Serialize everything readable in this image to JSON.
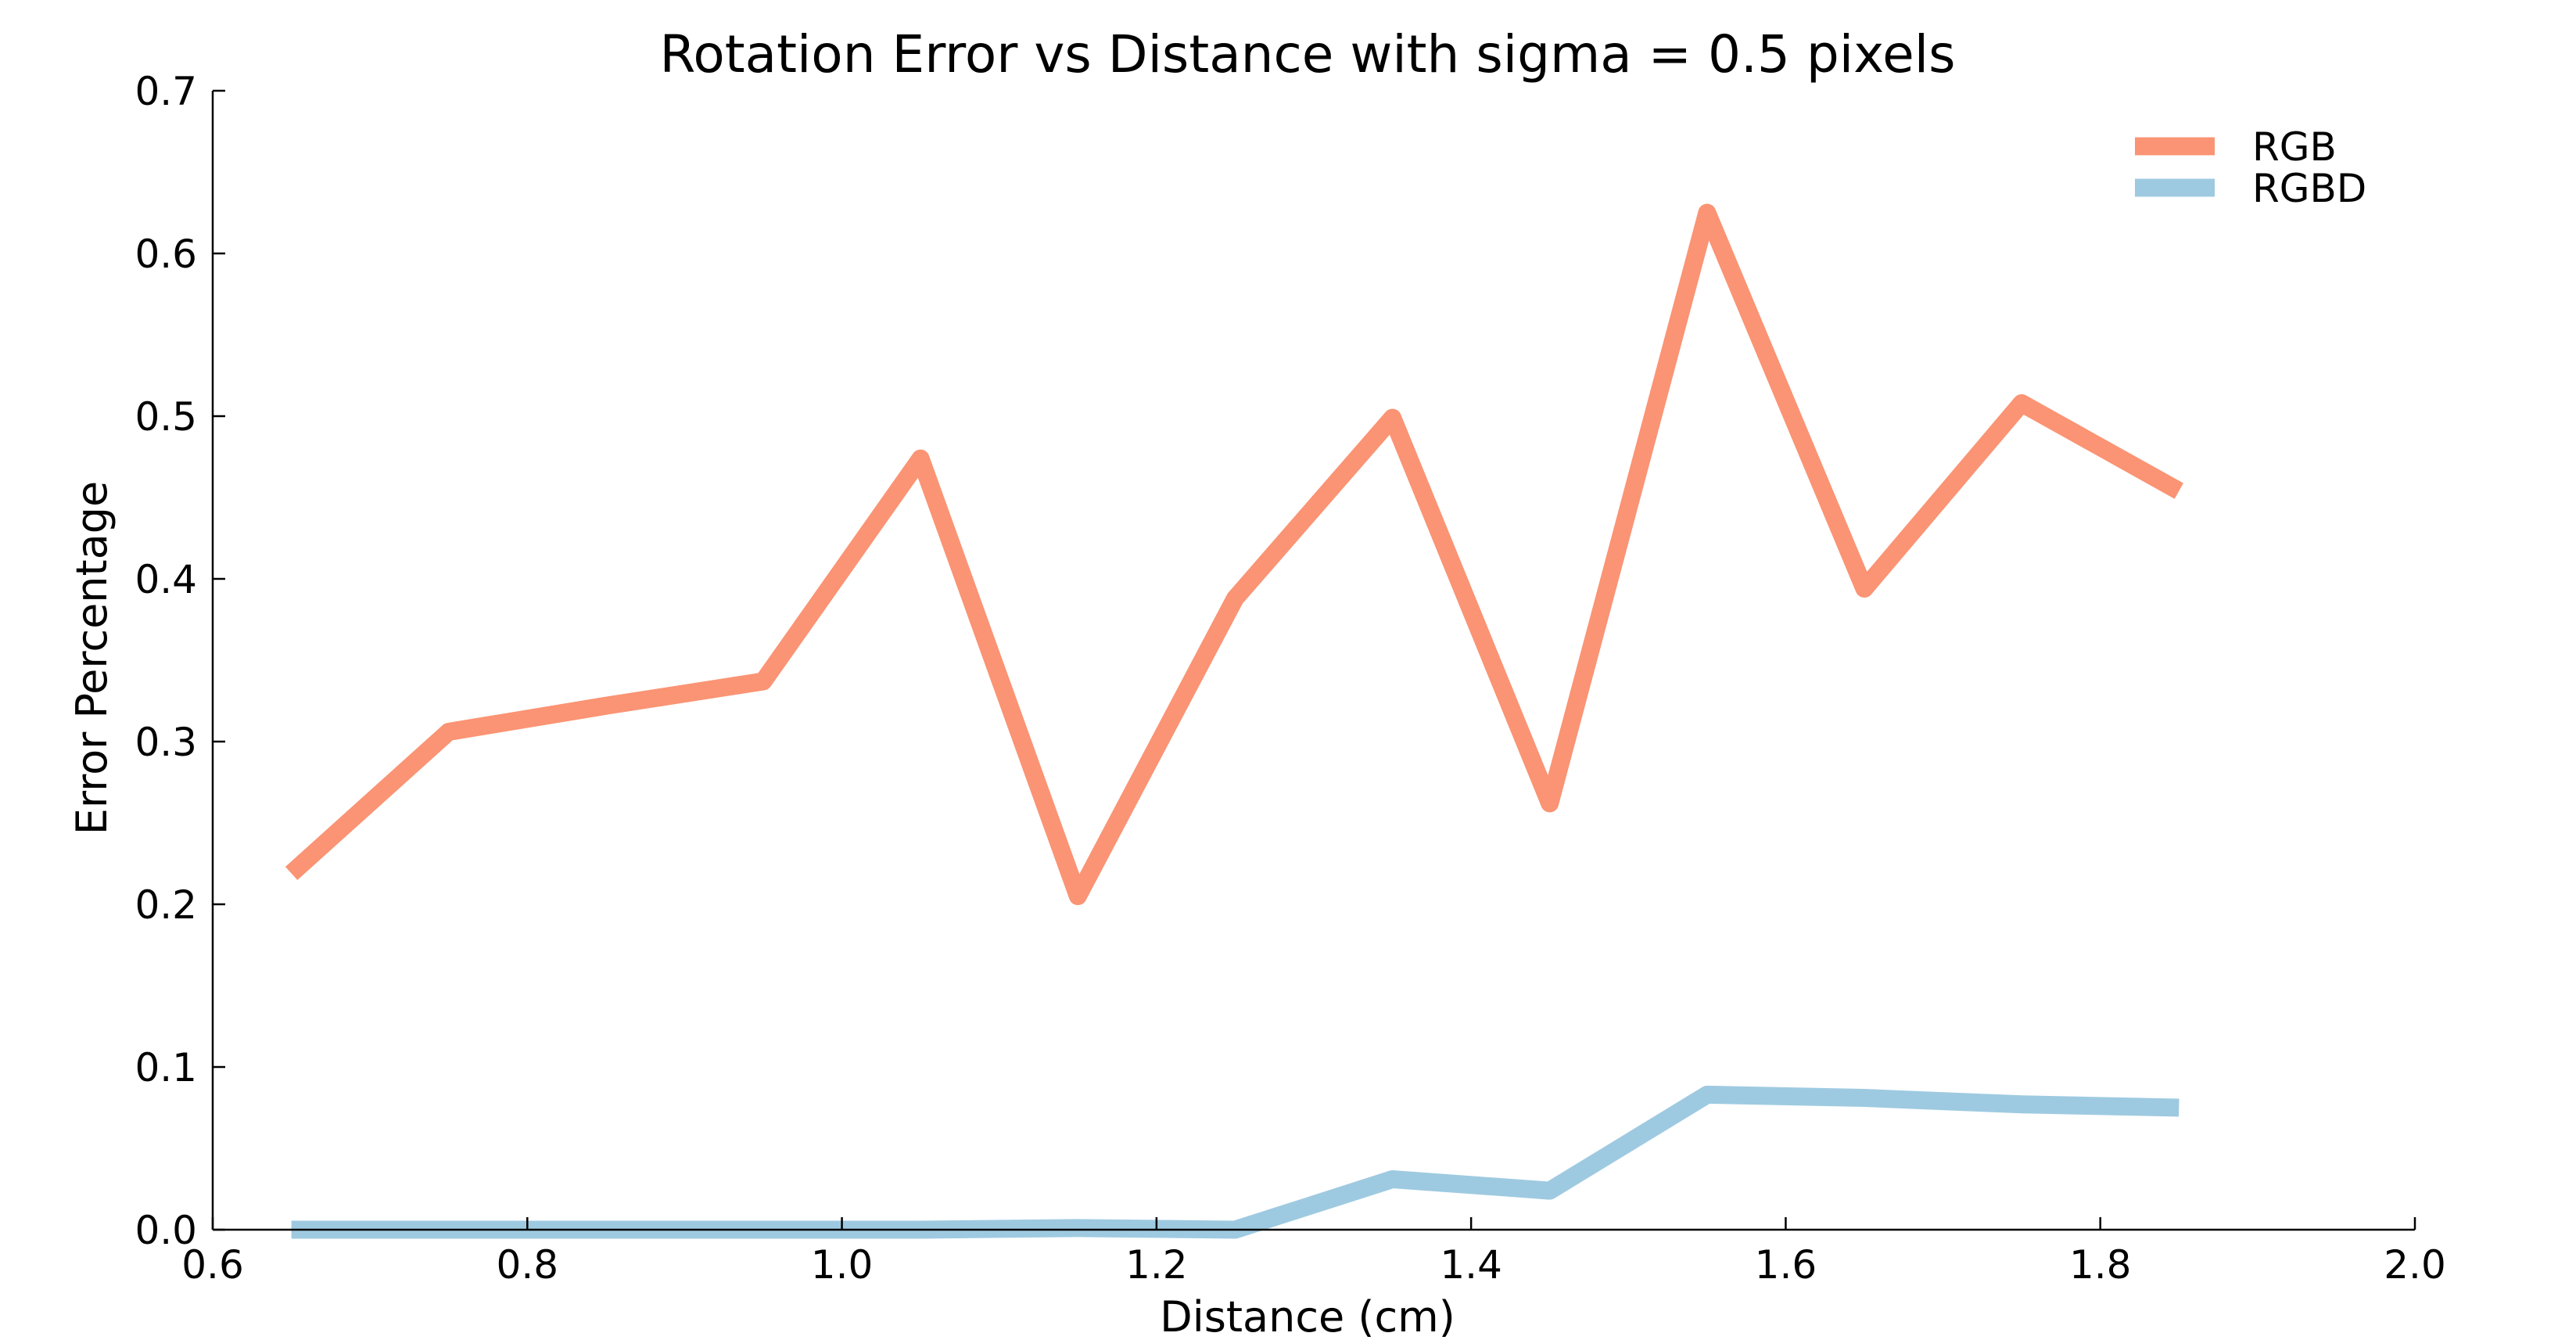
{
  "chart_data": {
    "type": "line",
    "title": "Rotation Error vs Distance with sigma = 0.5 pixels",
    "xlabel": "Distance (cm)",
    "ylabel": "Error Percentage",
    "xlim": [
      0.6,
      2.0
    ],
    "ylim": [
      0.0,
      0.7
    ],
    "xticks": [
      "0.6",
      "0.8",
      "1.0",
      "1.2",
      "1.4",
      "1.6",
      "1.8",
      "2.0"
    ],
    "yticks": [
      "0.0",
      "0.1",
      "0.2",
      "0.3",
      "0.4",
      "0.5",
      "0.6",
      "0.7"
    ],
    "grid": false,
    "legend_position": "top-right",
    "x": [
      0.65,
      0.75,
      0.85,
      0.95,
      1.05,
      1.15,
      1.25,
      1.35,
      1.45,
      1.55,
      1.65,
      1.75,
      1.85
    ],
    "series": [
      {
        "name": "RGB",
        "color": "#fa9474",
        "values": [
          0.219,
          0.306,
          0.322,
          0.337,
          0.474,
          0.205,
          0.388,
          0.499,
          0.262,
          0.625,
          0.394,
          0.508,
          0.454
        ]
      },
      {
        "name": "RGBD",
        "color": "#9ecae1",
        "values": [
          0.0,
          0.0,
          0.0,
          0.0,
          0.0,
          0.001,
          0.0,
          0.031,
          0.024,
          0.083,
          0.081,
          0.077,
          0.075
        ]
      }
    ]
  }
}
